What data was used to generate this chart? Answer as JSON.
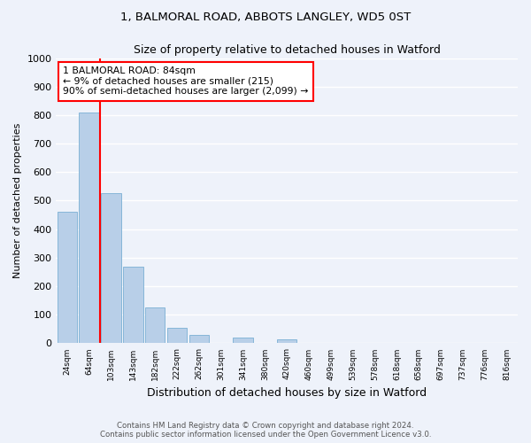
{
  "title1": "1, BALMORAL ROAD, ABBOTS LANGLEY, WD5 0ST",
  "title2": "Size of property relative to detached houses in Watford",
  "xlabel": "Distribution of detached houses by size in Watford",
  "ylabel": "Number of detached properties",
  "categories": [
    "24sqm",
    "64sqm",
    "103sqm",
    "143sqm",
    "182sqm",
    "222sqm",
    "262sqm",
    "301sqm",
    "341sqm",
    "380sqm",
    "420sqm",
    "460sqm",
    "499sqm",
    "539sqm",
    "578sqm",
    "618sqm",
    "658sqm",
    "697sqm",
    "737sqm",
    "776sqm",
    "816sqm"
  ],
  "values": [
    460,
    810,
    525,
    270,
    125,
    55,
    30,
    0,
    20,
    0,
    15,
    0,
    0,
    0,
    0,
    0,
    0,
    0,
    0,
    0,
    0
  ],
  "bar_color": "#b8cfe8",
  "bar_edge_color": "#7aafd4",
  "vline_color": "red",
  "vline_x": 1.51,
  "annotation_text": "1 BALMORAL ROAD: 84sqm\n← 9% of detached houses are smaller (215)\n90% of semi-detached houses are larger (2,099) →",
  "annotation_box_color": "white",
  "annotation_box_edge_color": "red",
  "ylim": [
    0,
    1000
  ],
  "yticks": [
    0,
    100,
    200,
    300,
    400,
    500,
    600,
    700,
    800,
    900,
    1000
  ],
  "background_color": "#eef2fa",
  "grid_color": "white",
  "footer_line1": "Contains HM Land Registry data © Crown copyright and database right 2024.",
  "footer_line2": "Contains public sector information licensed under the Open Government Licence v3.0."
}
